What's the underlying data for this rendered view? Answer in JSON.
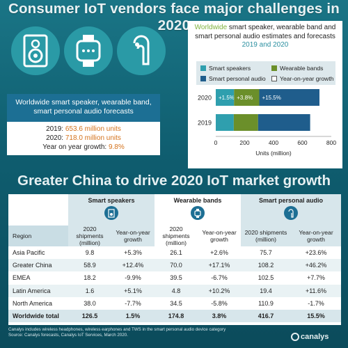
{
  "title": "Consumer IoT vendors face major challenges in 2020",
  "icons": [
    "speaker-icon",
    "smartwatch-icon",
    "earbud-icon"
  ],
  "summary": {
    "heading": "Worldwide smart speaker, wearable band, smart personal audio forecasts",
    "line_2019_label": "2019: ",
    "line_2019_value": "653.6 million units",
    "line_2020_label": "2020: ",
    "line_2020_value": "718.0 million units",
    "growth_label": "Year on year growth: ",
    "growth_value": "9.8%"
  },
  "chart_box": {
    "title_accent": "Worldwide",
    "title_rest": " smart speaker, wearable band and smart personal audio estimates and forecasts",
    "title_years": "2019 and 2020"
  },
  "chart_data": {
    "type": "bar",
    "orientation": "horizontal",
    "stacked": true,
    "categories": [
      "2020",
      "2019"
    ],
    "series": [
      {
        "name": "Smart speakers",
        "color": "#2f9fae",
        "values": [
          126.5,
          124.6
        ]
      },
      {
        "name": "Wearable bands",
        "color": "#6b8f2a",
        "values": [
          174.8,
          168.4
        ]
      },
      {
        "name": "Smart personal audio",
        "color": "#1f5d8c",
        "values": [
          416.7,
          360.6
        ]
      }
    ],
    "legend_extra": {
      "name": "Year-on-year growth",
      "color": "#ffffff"
    },
    "growth_labels": [
      "+1.5%",
      "+3.8%",
      "+15.5%"
    ],
    "xlabel": "Units (million)",
    "xticks": [
      0,
      200,
      400,
      600,
      800
    ],
    "xlim": [
      0,
      800
    ]
  },
  "subtitle": "Greater China to drive 2020 IoT market growth",
  "table": {
    "groups": [
      "Smart speakers",
      "Wearable bands",
      "Smart personal audio"
    ],
    "col_region": "Region",
    "col_shipments": "2020 shipments (million)",
    "col_growth": "Year-on-year growth",
    "rows": [
      {
        "region": "Asia Pacific",
        "v": [
          "9.8",
          "+5.3%",
          "26.1",
          "+2.6%",
          "75.7",
          "+23.6%"
        ]
      },
      {
        "region": "Greater China",
        "v": [
          "58.9",
          "+12.4%",
          "70.0",
          "+17.1%",
          "108.2",
          "+46.2%"
        ]
      },
      {
        "region": "EMEA",
        "v": [
          "18.2",
          "-9.9%",
          "39.5",
          "-6.7%",
          "102.5",
          "+7.7%"
        ]
      },
      {
        "region": "Latin America",
        "v": [
          "1.6",
          "+5.1%",
          "4.8",
          "+10.2%",
          "19.4",
          "+11.6%"
        ]
      },
      {
        "region": "North America",
        "v": [
          "38.0",
          "-7.7%",
          "34.5",
          "-5.8%",
          "110.9",
          "-1.7%"
        ]
      },
      {
        "region": "Worldwide total",
        "v": [
          "126.5",
          "1.5%",
          "174.8",
          "3.8%",
          "416.7",
          "15.5%"
        ]
      }
    ]
  },
  "footnote": {
    "line1": "Canalys includes wireless headphones, wireless earphones and TWS in the smart personal audio device category",
    "line2": "Source: Canalys forecasts, Canalys IoT Services, March 2020."
  },
  "brand": "canalys"
}
